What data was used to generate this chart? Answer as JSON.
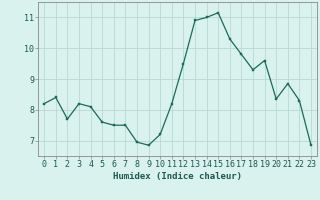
{
  "x": [
    0,
    1,
    2,
    3,
    4,
    5,
    6,
    7,
    8,
    9,
    10,
    11,
    12,
    13,
    14,
    15,
    16,
    17,
    18,
    19,
    20,
    21,
    22,
    23
  ],
  "y": [
    8.2,
    8.4,
    7.7,
    8.2,
    8.1,
    7.6,
    7.5,
    7.5,
    6.95,
    6.85,
    7.2,
    8.2,
    9.5,
    10.9,
    11.0,
    11.15,
    10.3,
    9.8,
    9.3,
    9.6,
    8.35,
    8.85,
    8.3,
    6.85
  ],
  "line_color": "#1a6b5a",
  "marker": "s",
  "marker_size": 2.0,
  "bg_color": "#d9f2ee",
  "grid_color": "#b8d8d2",
  "xlabel": "Humidex (Indice chaleur)",
  "xlim": [
    -0.5,
    23.5
  ],
  "ylim": [
    6.5,
    11.5
  ],
  "yticks": [
    7,
    8,
    9,
    10,
    11
  ],
  "xticks": [
    0,
    1,
    2,
    3,
    4,
    5,
    6,
    7,
    8,
    9,
    10,
    11,
    12,
    13,
    14,
    15,
    16,
    17,
    18,
    19,
    20,
    21,
    22,
    23
  ],
  "tick_label_color": "#1a5a50",
  "axis_color": "#888888",
  "xlabel_fontsize": 6.5,
  "tick_fontsize": 6.0,
  "linewidth": 0.9
}
